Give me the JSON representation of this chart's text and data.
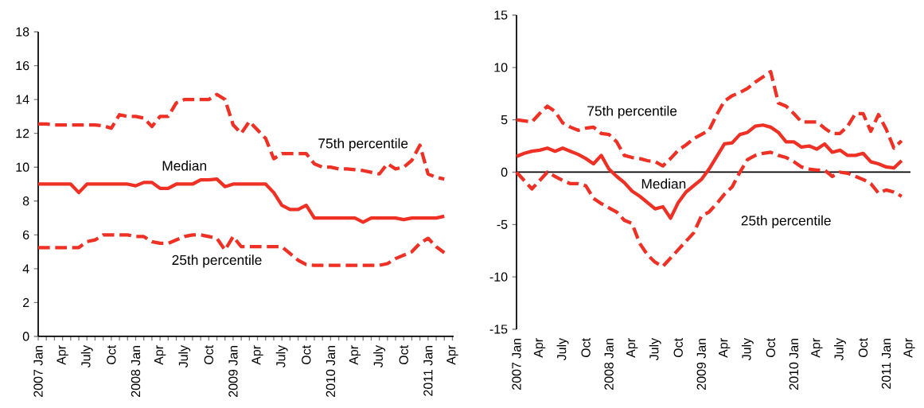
{
  "chart_data": [
    {
      "type": "line",
      "categories": [
        "2007 Jan",
        null,
        null,
        "Apr",
        null,
        null,
        "July",
        null,
        null,
        "Oct",
        null,
        null,
        "2008 Jan",
        null,
        null,
        "Apr",
        null,
        null,
        "July",
        null,
        null,
        "Oct",
        null,
        null,
        "2009 Jan",
        null,
        null,
        "Apr",
        null,
        null,
        "July",
        null,
        null,
        "Oct",
        null,
        null,
        "2010 Jan",
        null,
        null,
        "Apr",
        null,
        null,
        "July",
        null,
        null,
        "Oct",
        null,
        null,
        "2011 Jan",
        null,
        null,
        "Apr"
      ],
      "ylim": [
        0,
        18
      ],
      "yticks": [
        0,
        2,
        4,
        6,
        8,
        10,
        12,
        14,
        16,
        18
      ],
      "series": [
        {
          "name": "75th percentile",
          "color": "#ee3124",
          "line_style": "dashed",
          "values": [
            12.55,
            12.55,
            12.5,
            12.5,
            12.5,
            12.5,
            12.5,
            12.5,
            12.45,
            12.3,
            13.1,
            13.0,
            13.0,
            12.9,
            12.4,
            13.0,
            13.0,
            13.8,
            14.0,
            14.0,
            14.0,
            14.0,
            14.3,
            14.0,
            12.5,
            12.0,
            12.7,
            12.2,
            11.7,
            10.5,
            10.8,
            10.8,
            10.8,
            10.8,
            10.2,
            10.0,
            10.0,
            9.9,
            9.9,
            9.85,
            9.8,
            9.7,
            9.6,
            10.2,
            9.9,
            10.0,
            10.4,
            11.3,
            9.6,
            9.4,
            9.3,
            null
          ]
        },
        {
          "name": "Median",
          "color": "#ee3124",
          "line_style": "solid",
          "values": [
            9.0,
            9.0,
            9.0,
            9.0,
            9.0,
            8.5,
            9.0,
            9.0,
            9.0,
            9.0,
            9.0,
            9.0,
            8.9,
            9.1,
            9.1,
            8.75,
            8.75,
            9.0,
            9.0,
            9.0,
            9.25,
            9.25,
            9.3,
            8.85,
            9.0,
            9.0,
            9.0,
            9.0,
            9.0,
            8.5,
            7.75,
            7.5,
            7.5,
            7.75,
            7.0,
            7.0,
            7.0,
            7.0,
            7.0,
            7.0,
            6.75,
            7.0,
            7.0,
            7.0,
            7.0,
            6.9,
            7.0,
            7.0,
            7.0,
            7.0,
            7.1,
            null
          ]
        },
        {
          "name": "25th percentile",
          "color": "#ee3124",
          "line_style": "dashed",
          "values": [
            5.25,
            5.25,
            5.25,
            5.25,
            5.25,
            5.25,
            5.6,
            5.7,
            6.0,
            6.0,
            6.0,
            6.0,
            5.9,
            5.9,
            5.6,
            5.5,
            5.5,
            5.7,
            5.9,
            6.0,
            6.0,
            5.9,
            5.8,
            5.1,
            5.9,
            5.3,
            5.3,
            5.3,
            5.3,
            5.3,
            5.3,
            4.9,
            4.5,
            4.25,
            4.2,
            4.2,
            4.2,
            4.2,
            4.2,
            4.2,
            4.2,
            4.2,
            4.2,
            4.3,
            4.6,
            4.8,
            5.0,
            5.5,
            5.8,
            5.3,
            4.95,
            null
          ]
        }
      ]
    },
    {
      "type": "line",
      "categories": [
        "2007 Jan",
        null,
        null,
        "Apr",
        null,
        null,
        "July",
        null,
        null,
        "Oct",
        null,
        null,
        "2008 Jan",
        null,
        null,
        "Apr",
        null,
        null,
        "July",
        null,
        null,
        "Oct",
        null,
        null,
        "2009 Jan",
        null,
        null,
        "Apr",
        null,
        null,
        "July",
        null,
        null,
        "Oct",
        null,
        null,
        "2010 Jan",
        null,
        null,
        "Apr",
        null,
        null,
        "July",
        null,
        null,
        "Oct",
        null,
        null,
        "2011 Jan",
        null,
        null,
        "Apr"
      ],
      "ylim": [
        -15,
        15
      ],
      "yticks": [
        -15,
        -10,
        -5,
        0,
        5,
        10,
        15
      ],
      "ref_lines": [
        {
          "axis": "y",
          "value": 0,
          "color": "#000000"
        }
      ],
      "series": [
        {
          "name": "75th percentile",
          "color": "#ee3124",
          "line_style": "dashed",
          "values": [
            5.0,
            4.9,
            4.8,
            5.6,
            6.3,
            5.8,
            4.7,
            4.3,
            4.0,
            4.2,
            4.3,
            3.7,
            3.6,
            2.9,
            1.6,
            1.4,
            1.3,
            1.1,
            1.0,
            0.6,
            1.3,
            2.1,
            2.6,
            3.2,
            3.6,
            4.0,
            5.5,
            6.8,
            7.3,
            7.6,
            8.0,
            8.6,
            9.1,
            9.6,
            6.6,
            6.3,
            5.6,
            4.8,
            4.8,
            4.8,
            4.2,
            3.7,
            3.7,
            4.4,
            5.6,
            5.6,
            3.9,
            5.5,
            4.1,
            2.3,
            3.0,
            null
          ]
        },
        {
          "name": "Median",
          "color": "#ee3124",
          "line_style": "solid",
          "values": [
            1.5,
            1.8,
            2.0,
            2.1,
            2.3,
            2.0,
            2.3,
            2.0,
            1.7,
            1.3,
            0.8,
            1.6,
            0.3,
            -0.4,
            -1.0,
            -1.8,
            -2.3,
            -2.9,
            -3.5,
            -3.3,
            -4.4,
            -2.9,
            -1.9,
            -1.3,
            -0.7,
            0.3,
            1.5,
            2.7,
            2.8,
            3.6,
            3.8,
            4.4,
            4.5,
            4.3,
            3.8,
            2.9,
            2.9,
            2.4,
            2.5,
            2.2,
            2.7,
            1.9,
            2.1,
            1.6,
            1.6,
            1.8,
            1.0,
            0.8,
            0.5,
            0.4,
            1.1,
            null
          ]
        },
        {
          "name": "25th percentile",
          "color": "#ee3124",
          "line_style": "dashed",
          "values": [
            0.0,
            -0.8,
            -1.6,
            -0.8,
            0.0,
            -0.4,
            -0.8,
            -1.1,
            -1.1,
            -1.3,
            -2.5,
            -3.0,
            -3.4,
            -3.8,
            -4.6,
            -4.9,
            -6.8,
            -7.9,
            -8.6,
            -9.0,
            -8.2,
            -7.4,
            -6.6,
            -5.8,
            -4.2,
            -3.8,
            -3.0,
            -2.1,
            -1.4,
            0.0,
            1.2,
            1.6,
            1.8,
            1.9,
            1.6,
            1.4,
            1.0,
            0.5,
            0.3,
            0.2,
            0.2,
            -0.4,
            0.0,
            -0.1,
            -0.4,
            -0.7,
            -1.1,
            -2.0,
            -1.7,
            -1.9,
            -2.3,
            null
          ]
        }
      ]
    }
  ]
}
